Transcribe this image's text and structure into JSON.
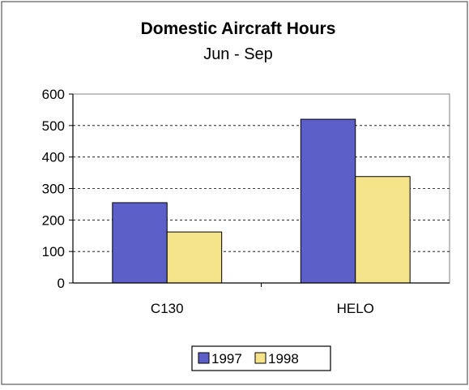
{
  "chart_data": {
    "type": "bar",
    "title": "Domestic Aircraft Hours",
    "subtitle": "Jun - Sep",
    "xlabel": "",
    "ylabel": "",
    "categories": [
      "C130",
      "HELO"
    ],
    "series": [
      {
        "name": "1997",
        "values": [
          255,
          520
        ],
        "color": "#5b5fc7"
      },
      {
        "name": "1998",
        "values": [
          162,
          338
        ],
        "color": "#f5e38a"
      }
    ],
    "ylim": [
      0,
      600
    ],
    "yticks": [
      0,
      100,
      200,
      300,
      400,
      500,
      600
    ],
    "grid": true,
    "legend": "bottom"
  }
}
